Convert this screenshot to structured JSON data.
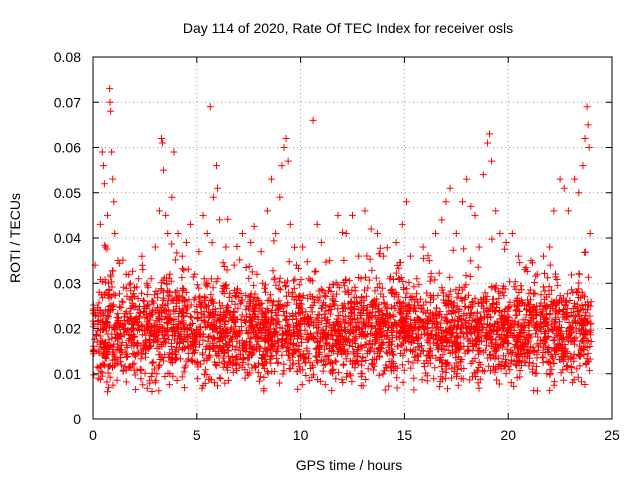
{
  "chart_data": {
    "type": "scatter",
    "title": "Day 114 of 2020, Rate Of TEC Index for receiver osls",
    "xlabel": "GPS time / hours",
    "ylabel": "ROTI / TECUs",
    "xlim": [
      0,
      25
    ],
    "ylim": [
      0,
      0.08
    ],
    "grid": true,
    "marker": "+",
    "color": "#ff0000",
    "xticks": [
      "0",
      "5",
      "10",
      "15",
      "20",
      "25"
    ],
    "yticks": [
      "0",
      "0.01",
      "0.02",
      "0.03",
      "0.04",
      "0.05",
      "0.06",
      "0.07",
      "0.08"
    ],
    "series": [
      {
        "name": "ROTI",
        "points": [
          [
            0.05,
            0.021
          ],
          [
            0.1,
            0.034
          ],
          [
            0.2,
            0.017
          ],
          [
            0.25,
            0.009
          ],
          [
            0.3,
            0.028
          ],
          [
            0.35,
            0.043
          ],
          [
            0.45,
            0.059
          ],
          [
            0.5,
            0.056
          ],
          [
            0.55,
            0.052
          ],
          [
            0.6,
            0.038
          ],
          [
            0.7,
            0.045
          ],
          [
            0.75,
            0.03
          ],
          [
            0.8,
            0.073
          ],
          [
            0.82,
            0.07
          ],
          [
            0.85,
            0.068
          ],
          [
            0.9,
            0.059
          ],
          [
            0.95,
            0.053
          ],
          [
            1.0,
            0.048
          ],
          [
            1.05,
            0.041
          ],
          [
            1.2,
            0.035
          ],
          [
            1.4,
            0.026
          ],
          [
            1.6,
            0.032
          ],
          [
            1.8,
            0.03
          ],
          [
            2.0,
            0.029
          ],
          [
            2.2,
            0.031
          ],
          [
            2.4,
            0.033
          ],
          [
            2.6,
            0.03
          ],
          [
            2.8,
            0.031
          ],
          [
            3.0,
            0.038
          ],
          [
            3.2,
            0.046
          ],
          [
            3.3,
            0.062
          ],
          [
            3.35,
            0.061
          ],
          [
            3.4,
            0.055
          ],
          [
            3.5,
            0.045
          ],
          [
            3.6,
            0.041
          ],
          [
            3.8,
            0.049
          ],
          [
            3.9,
            0.059
          ],
          [
            4.1,
            0.041
          ],
          [
            4.3,
            0.036
          ],
          [
            4.5,
            0.039
          ],
          [
            4.7,
            0.043
          ],
          [
            4.9,
            0.032
          ],
          [
            5.1,
            0.037
          ],
          [
            5.3,
            0.045
          ],
          [
            5.5,
            0.041
          ],
          [
            5.65,
            0.069
          ],
          [
            5.8,
            0.049
          ],
          [
            5.95,
            0.056
          ],
          [
            6.0,
            0.051
          ],
          [
            6.1,
            0.044
          ],
          [
            6.4,
            0.038
          ],
          [
            6.8,
            0.034
          ],
          [
            7.2,
            0.041
          ],
          [
            7.6,
            0.039
          ],
          [
            7.9,
            0.032
          ],
          [
            8.1,
            0.037
          ],
          [
            8.4,
            0.046
          ],
          [
            8.6,
            0.053
          ],
          [
            8.8,
            0.041
          ],
          [
            9.0,
            0.049
          ],
          [
            9.1,
            0.056
          ],
          [
            9.2,
            0.06
          ],
          [
            9.3,
            0.062
          ],
          [
            9.4,
            0.057
          ],
          [
            9.5,
            0.043
          ],
          [
            9.8,
            0.034
          ],
          [
            10.1,
            0.038
          ],
          [
            10.4,
            0.031
          ],
          [
            10.6,
            0.066
          ],
          [
            10.8,
            0.043
          ],
          [
            11.0,
            0.039
          ],
          [
            11.4,
            0.035
          ],
          [
            11.8,
            0.045
          ],
          [
            12.2,
            0.041
          ],
          [
            12.5,
            0.045
          ],
          [
            12.8,
            0.036
          ],
          [
            13.1,
            0.046
          ],
          [
            13.4,
            0.042
          ],
          [
            13.7,
            0.041
          ],
          [
            14.0,
            0.036
          ],
          [
            14.3,
            0.031
          ],
          [
            14.6,
            0.039
          ],
          [
            14.9,
            0.043
          ],
          [
            15.1,
            0.048
          ],
          [
            15.3,
            0.036
          ],
          [
            15.6,
            0.031
          ],
          [
            15.9,
            0.038
          ],
          [
            16.2,
            0.035
          ],
          [
            16.5,
            0.041
          ],
          [
            16.8,
            0.044
          ],
          [
            17.0,
            0.048
          ],
          [
            17.2,
            0.051
          ],
          [
            17.5,
            0.041
          ],
          [
            17.8,
            0.048
          ],
          [
            18.0,
            0.053
          ],
          [
            18.2,
            0.047
          ],
          [
            18.4,
            0.045
          ],
          [
            18.6,
            0.038
          ],
          [
            18.8,
            0.054
          ],
          [
            19.0,
            0.061
          ],
          [
            19.1,
            0.063
          ],
          [
            19.2,
            0.057
          ],
          [
            19.4,
            0.046
          ],
          [
            19.6,
            0.041
          ],
          [
            19.9,
            0.039
          ],
          [
            20.2,
            0.041
          ],
          [
            20.5,
            0.036
          ],
          [
            20.8,
            0.033
          ],
          [
            21.1,
            0.035
          ],
          [
            21.4,
            0.032
          ],
          [
            21.7,
            0.036
          ],
          [
            22.0,
            0.038
          ],
          [
            22.2,
            0.046
          ],
          [
            22.5,
            0.053
          ],
          [
            22.7,
            0.051
          ],
          [
            22.9,
            0.046
          ],
          [
            23.2,
            0.053
          ],
          [
            23.4,
            0.05
          ],
          [
            23.6,
            0.056
          ],
          [
            23.7,
            0.062
          ],
          [
            23.8,
            0.069
          ],
          [
            23.85,
            0.065
          ],
          [
            23.9,
            0.06
          ],
          [
            23.95,
            0.041
          ]
        ]
      }
    ]
  }
}
